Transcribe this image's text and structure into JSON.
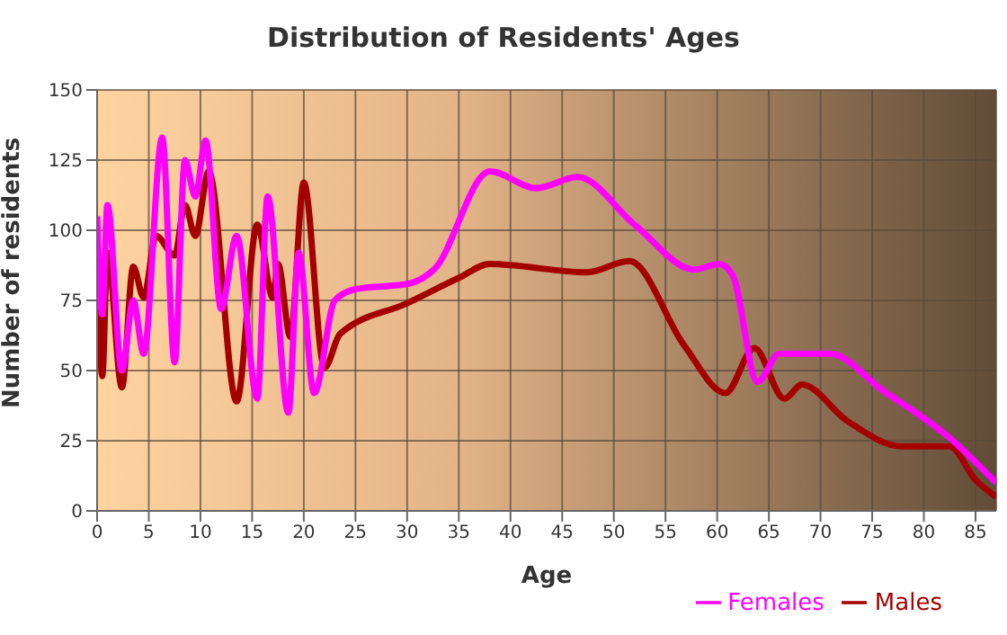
{
  "chart_data": {
    "type": "line",
    "title": "Distribution of Residents' Ages",
    "xlabel": "Age",
    "ylabel": "Number of residents",
    "xlim": [
      0,
      87
    ],
    "xticks": [
      0,
      5,
      10,
      15,
      20,
      25,
      30,
      35,
      40,
      45,
      50,
      55,
      60,
      65,
      70,
      75,
      80,
      85
    ],
    "ylim": [
      0,
      150
    ],
    "yticks": [
      0,
      25,
      50,
      75,
      100,
      125,
      150
    ],
    "grid": true,
    "legend": "bottom right",
    "marker": "none",
    "line_style": "solid",
    "series": [
      {
        "name": "Males",
        "color": "#a50000",
        "x": [
          0,
          0.5,
          1,
          2.4,
          3.5,
          4.5,
          5.7,
          7.5,
          8.5,
          9.5,
          10.8,
          13.5,
          15.5,
          17,
          17.5,
          18.7,
          20,
          22,
          23.5,
          30,
          35,
          38,
          47.4,
          51.5,
          56.8,
          60.8,
          63.6,
          66.5,
          68.2,
          72.6,
          77.9,
          82.5,
          85,
          87
        ],
        "values": [
          100,
          48,
          92,
          44,
          87,
          76,
          98,
          91,
          109,
          98,
          121,
          39,
          102,
          76,
          88,
          62,
          117,
          51,
          63,
          74,
          83,
          88,
          85,
          89,
          59,
          42,
          58,
          40,
          45,
          32,
          23,
          23,
          11,
          5
        ]
      },
      {
        "name": "Females",
        "color": "#ff00ff",
        "x": [
          0,
          0.5,
          1,
          2.4,
          3.5,
          4.5,
          6.3,
          7.5,
          8.5,
          9.5,
          10.5,
          12,
          13.5,
          15.5,
          16.5,
          18.5,
          19.5,
          21,
          23,
          25,
          30.2,
          32.6,
          38,
          42.5,
          46.5,
          52,
          57.8,
          60.2,
          61.5,
          63.9,
          66,
          70.9,
          76,
          82.5,
          87
        ],
        "values": [
          105,
          70,
          109,
          50,
          75,
          56,
          133,
          53,
          125,
          112,
          132,
          72,
          98,
          40,
          112,
          35,
          92,
          42,
          75,
          79,
          81,
          86,
          121,
          115,
          119,
          102,
          86,
          88,
          84,
          46,
          56,
          56,
          43,
          26,
          10
        ]
      }
    ]
  }
}
